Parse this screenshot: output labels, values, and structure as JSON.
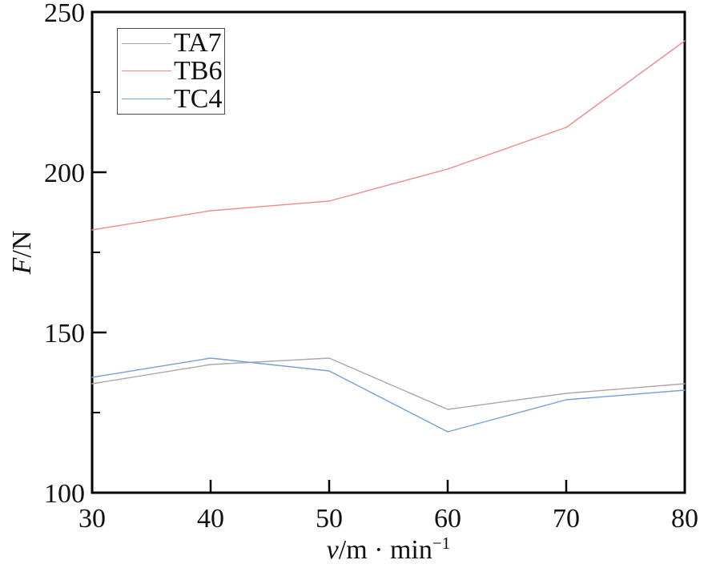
{
  "chart_data": {
    "type": "line",
    "title": "",
    "xlabel": "v/m · min⁻¹",
    "ylabel": "F/N",
    "x": [
      30,
      40,
      50,
      60,
      70,
      80
    ],
    "series": [
      {
        "name": "TA7",
        "color": "#a8a8a8",
        "values": [
          134,
          140,
          142,
          126,
          131,
          134
        ]
      },
      {
        "name": "TB6",
        "color": "#f18b8b",
        "values": [
          182,
          188,
          191,
          201,
          214,
          241
        ]
      },
      {
        "name": "TC4",
        "color": "#74a0d8",
        "values": [
          136,
          142,
          138,
          119,
          129,
          132
        ]
      }
    ],
    "xlim": [
      30,
      80
    ],
    "ylim": [
      100,
      250
    ],
    "xticks": [
      30,
      40,
      50,
      60,
      70,
      80
    ],
    "yticks_major": [
      100,
      150,
      200,
      250
    ],
    "yticks_minor": [
      125,
      175,
      225
    ],
    "grid": false,
    "legend_position": "top-left",
    "axis_color": "#000000",
    "tick_label_color": "#111111",
    "background": "#ffffff"
  },
  "labels": {
    "y_var": "F",
    "y_rest": "/N",
    "x_var": "v",
    "x_rest": "/m · min",
    "x_sup": "−1"
  }
}
